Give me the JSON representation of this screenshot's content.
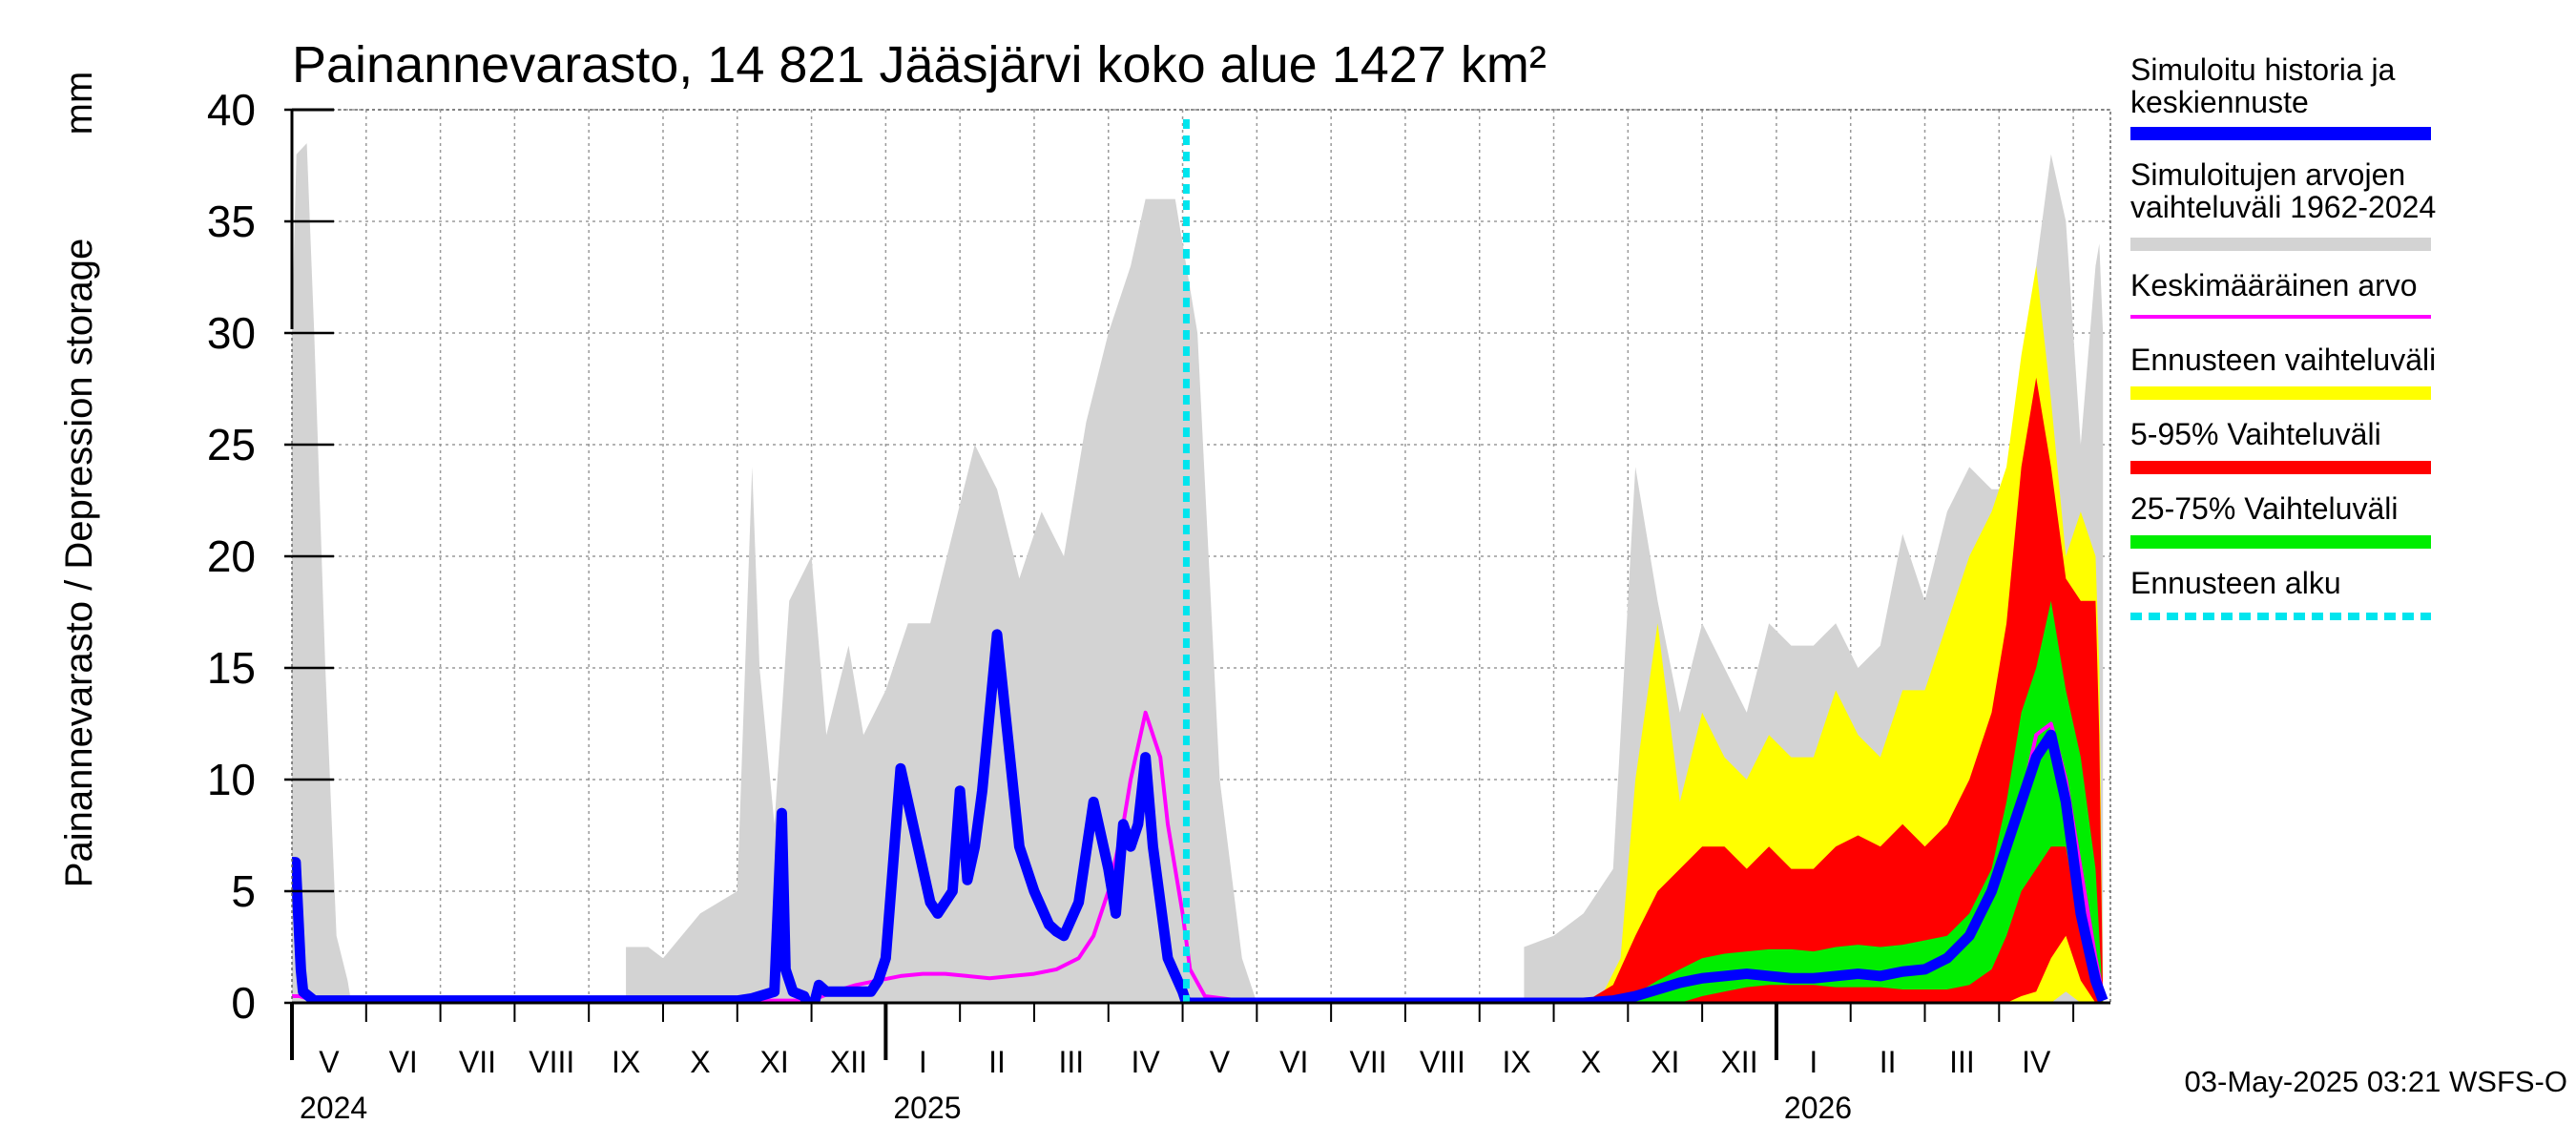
{
  "chart_data": {
    "type": "area",
    "title": "Painannevarasto, 14 821 Jääsjärvi koko alue 1427 km²",
    "ylabel": "Painannevarasto / Depression storage",
    "yunit": "mm",
    "ylim": [
      0,
      40
    ],
    "yticks": [
      0,
      5,
      10,
      15,
      20,
      25,
      30,
      35,
      40
    ],
    "xlim": [
      0,
      24.5
    ],
    "grid": true,
    "months": [
      "V",
      "VI",
      "VII",
      "VIII",
      "IX",
      "X",
      "XI",
      "XII",
      "I",
      "II",
      "III",
      "IV",
      "V",
      "VI",
      "VII",
      "VIII",
      "IX",
      "X",
      "XI",
      "XII",
      "I",
      "II",
      "III",
      "IV"
    ],
    "years": [
      {
        "label": "2024",
        "month_index": 0
      },
      {
        "label": "2025",
        "month_index": 8
      },
      {
        "label": "2026",
        "month_index": 20
      }
    ],
    "forecast_start": 12.05,
    "legend": [
      {
        "label": "Simuloitu historia ja keskiennuste",
        "color": "#0000ff",
        "style": "line"
      },
      {
        "label": "Simuloitujen arvojen vaihteluväli 1962-2024",
        "color": "#d3d3d3",
        "style": "line"
      },
      {
        "label": "Keskimääräinen arvo",
        "color": "#ff00ff",
        "style": "thin"
      },
      {
        "label": "Ennusteen vaihteluväli",
        "color": "#ffff00",
        "style": "line"
      },
      {
        "label": "5-95% Vaihteluväli",
        "color": "#ff0000",
        "style": "line"
      },
      {
        "label": "25-75% Vaihteluväli",
        "color": "#00ee00",
        "style": "line"
      },
      {
        "label": "Ennusteen alku",
        "color": "#00e5ee",
        "style": "dash"
      }
    ],
    "series": [
      {
        "name": "Simuloitujen arvojen vaihteluväli 1962-2024",
        "color": "#d3d3d3",
        "x": [
          0,
          0.06,
          0.2,
          0.3,
          0.45,
          0.6,
          0.75,
          0.8,
          4.5,
          4.5,
          4.8,
          5.0,
          5.5,
          6.0,
          6.2,
          6.3,
          6.5,
          6.7,
          7.0,
          7.2,
          7.5,
          7.7,
          8.0,
          8.3,
          8.6,
          8.9,
          9.2,
          9.5,
          9.8,
          10.1,
          10.4,
          10.7,
          11.0,
          11.3,
          11.5,
          11.7,
          11.9,
          12.2,
          12.5,
          12.8,
          13.0,
          16.6,
          16.6,
          17.0,
          17.4,
          17.8,
          18.1,
          18.4,
          18.7,
          19.0,
          19.3,
          19.6,
          19.9,
          20.2,
          20.5,
          20.8,
          21.1,
          21.4,
          21.7,
          22.0,
          22.3,
          22.6,
          22.9,
          23.1,
          23.3,
          23.5,
          23.7,
          23.9,
          24.1,
          24.3,
          24.35,
          24.4
        ],
        "hi": [
          30,
          38,
          38.5,
          30,
          15,
          3,
          1,
          0,
          0,
          2.5,
          2.5,
          2,
          4,
          5,
          24,
          15,
          8,
          18,
          20,
          12,
          16,
          12,
          14,
          17,
          17,
          21,
          25,
          23,
          19,
          22,
          20,
          26,
          30,
          33,
          36,
          36,
          36,
          30,
          10,
          2,
          0,
          0,
          2.5,
          3,
          4,
          6,
          24,
          18,
          13,
          17,
          15,
          13,
          17,
          16,
          16,
          17,
          15,
          16,
          21,
          18,
          22,
          24,
          23,
          23,
          25,
          33,
          38,
          35,
          25,
          33,
          34,
          30
        ],
        "lo": [
          0,
          0,
          0,
          0,
          0,
          0,
          0,
          0,
          0,
          0,
          0,
          0,
          0,
          0,
          0,
          0,
          0,
          0,
          0,
          0,
          0,
          0,
          0,
          0,
          0,
          0,
          0,
          0,
          0,
          0,
          0,
          0,
          0,
          0,
          0,
          0,
          0,
          0,
          0,
          0,
          0,
          0,
          0,
          0,
          0,
          0,
          0,
          0,
          0,
          0,
          0,
          0,
          0,
          0,
          0,
          0,
          0,
          0,
          0,
          0,
          0,
          0,
          0,
          0,
          0,
          0,
          0,
          0,
          0,
          0,
          0,
          0
        ]
      },
      {
        "name": "Ennusteen vaihteluväli",
        "color": "#ffff00",
        "x": [
          17.6,
          17.9,
          18.1,
          18.4,
          18.7,
          19.0,
          19.3,
          19.6,
          19.9,
          20.2,
          20.5,
          20.8,
          21.1,
          21.4,
          21.7,
          22.0,
          22.3,
          22.6,
          22.9,
          23.1,
          23.3,
          23.5,
          23.7,
          23.9,
          24.1,
          24.3,
          24.35,
          24.4
        ],
        "hi": [
          0,
          2,
          10,
          17,
          9,
          13,
          11,
          10,
          12,
          11,
          11,
          14,
          12,
          11,
          14,
          14,
          17,
          20,
          22,
          24,
          29,
          33,
          27,
          20,
          22,
          20,
          15,
          0
        ],
        "lo": [
          0,
          0,
          0,
          0,
          0,
          0,
          0,
          0,
          0,
          0,
          0,
          0,
          0,
          0,
          0,
          0,
          0,
          0,
          0,
          0,
          0,
          0,
          0,
          0.5,
          0,
          0,
          0,
          0
        ]
      },
      {
        "name": "5-95% Vaihteluväli",
        "color": "#ff0000",
        "x": [
          17.4,
          17.8,
          18.1,
          18.4,
          18.7,
          19.0,
          19.3,
          19.6,
          19.9,
          20.2,
          20.5,
          20.8,
          21.1,
          21.4,
          21.7,
          22.0,
          22.3,
          22.6,
          22.9,
          23.1,
          23.3,
          23.5,
          23.7,
          23.9,
          24.1,
          24.3,
          24.35,
          24.4
        ],
        "hi": [
          0,
          0.8,
          3,
          5,
          6,
          7,
          7,
          6,
          7,
          6,
          6,
          7,
          7.5,
          7,
          8,
          7,
          8,
          10,
          13,
          17,
          24,
          28,
          24,
          19,
          18,
          18,
          12,
          0
        ],
        "lo": [
          0,
          0,
          0,
          0,
          0,
          0,
          0,
          0,
          0,
          0,
          0,
          0,
          0,
          0,
          0,
          0,
          0,
          0,
          0,
          0,
          0.3,
          0.5,
          2,
          3,
          1,
          0,
          0,
          0
        ]
      },
      {
        "name": "25-75% Vaihteluväli",
        "color": "#00ee00",
        "x": [
          17.4,
          17.8,
          18.1,
          18.4,
          18.7,
          19.0,
          19.3,
          19.6,
          19.9,
          20.2,
          20.5,
          20.8,
          21.1,
          21.4,
          21.7,
          22.0,
          22.3,
          22.6,
          22.9,
          23.1,
          23.3,
          23.5,
          23.7,
          23.9,
          24.1,
          24.3,
          24.35,
          24.4
        ],
        "hi": [
          0,
          0.1,
          0.4,
          1.0,
          1.5,
          2.0,
          2.2,
          2.3,
          2.4,
          2.4,
          2.3,
          2.5,
          2.6,
          2.5,
          2.6,
          2.8,
          3.0,
          4.0,
          6.0,
          9.0,
          13.0,
          15.0,
          18.0,
          14.0,
          11.0,
          6.0,
          3.0,
          0
        ],
        "lo": [
          0,
          0,
          0,
          0,
          0,
          0.3,
          0.5,
          0.7,
          0.8,
          0.8,
          0.8,
          0.7,
          0.7,
          0.7,
          0.6,
          0.6,
          0.6,
          0.8,
          1.5,
          3.0,
          5.0,
          6.0,
          7.0,
          7.0,
          3.0,
          1.0,
          0.3,
          0
        ]
      },
      {
        "name": "Keskimääräinen arvo",
        "color": "#ff00ff",
        "x": [
          0,
          0.1,
          0.3,
          7.0,
          7.3,
          7.6,
          7.9,
          8.2,
          8.5,
          8.8,
          9.1,
          9.4,
          9.7,
          10.0,
          10.3,
          10.6,
          10.8,
          11.0,
          11.2,
          11.3,
          11.5,
          11.6,
          11.7,
          11.8,
          12.0,
          12.1,
          12.3,
          13.0,
          17.4,
          17.8,
          18.1,
          18.4,
          18.7,
          19.0,
          19.3,
          19.6,
          19.9,
          20.2,
          20.5,
          20.8,
          21.1,
          21.4,
          21.7,
          22.0,
          22.3,
          22.6,
          22.9,
          23.1,
          23.3,
          23.5,
          23.7,
          23.9,
          24.1,
          24.3,
          24.4
        ],
        "y": [
          0.3,
          0.3,
          0.1,
          0.1,
          0.5,
          0.8,
          1.0,
          1.2,
          1.3,
          1.3,
          1.2,
          1.1,
          1.2,
          1.3,
          1.5,
          2.0,
          3.0,
          5.0,
          8.0,
          10.0,
          13.0,
          12.0,
          11.0,
          8.0,
          4.0,
          1.5,
          0.3,
          0.0,
          0.0,
          0.1,
          0.3,
          0.6,
          0.9,
          1.1,
          1.2,
          1.3,
          1.2,
          1.1,
          1.1,
          1.2,
          1.3,
          1.2,
          1.4,
          1.5,
          2.0,
          3.0,
          5.0,
          7.0,
          9.0,
          12.0,
          12.5,
          10.0,
          6.0,
          2.0,
          0.3
        ]
      },
      {
        "name": "Simuloitu historia ja keskiennuste",
        "color": "#0000ff",
        "x": [
          0,
          0.05,
          0.12,
          0.15,
          0.3,
          6.0,
          6.2,
          6.5,
          6.6,
          6.65,
          6.7,
          6.75,
          6.9,
          7.0,
          7.1,
          7.2,
          7.4,
          7.6,
          7.8,
          7.9,
          8.0,
          8.2,
          8.5,
          8.6,
          8.7,
          8.9,
          9.0,
          9.1,
          9.2,
          9.3,
          9.5,
          9.8,
          10.0,
          10.2,
          10.3,
          10.4,
          10.6,
          10.8,
          11.0,
          11.1,
          11.2,
          11.3,
          11.4,
          11.5,
          11.6,
          11.8,
          12.0,
          12.05,
          13.0,
          17.4,
          17.8,
          18.1,
          18.4,
          18.7,
          19.0,
          19.3,
          19.6,
          19.9,
          20.2,
          20.5,
          20.8,
          21.1,
          21.4,
          21.7,
          22.0,
          22.3,
          22.6,
          22.9,
          23.1,
          23.3,
          23.5,
          23.7,
          23.9,
          24.1,
          24.3,
          24.4
        ],
        "y": [
          6.3,
          6.3,
          1.5,
          0.5,
          0.1,
          0.1,
          0.2,
          0.5,
          8.5,
          1.5,
          1.0,
          0.5,
          0.3,
          -0.5,
          0.8,
          0.5,
          0.5,
          0.5,
          0.5,
          1.0,
          2.0,
          10.5,
          6.0,
          4.5,
          4.0,
          5.0,
          9.5,
          5.5,
          7.0,
          9.5,
          16.5,
          7.0,
          5.0,
          3.5,
          3.2,
          3.0,
          4.5,
          9.0,
          6.0,
          4.0,
          8.0,
          7.0,
          8.0,
          11.0,
          7.0,
          2.0,
          0.5,
          0.0,
          0.0,
          0.0,
          0.1,
          0.3,
          0.6,
          0.9,
          1.1,
          1.2,
          1.3,
          1.2,
          1.1,
          1.1,
          1.2,
          1.3,
          1.2,
          1.4,
          1.5,
          2.0,
          3.0,
          5.0,
          7.0,
          9.0,
          11.0,
          12.0,
          9.0,
          4.0,
          1.0,
          0.1
        ]
      }
    ]
  },
  "footer": {
    "timestamp": "03-May-2025 03:21 WSFS-O"
  }
}
